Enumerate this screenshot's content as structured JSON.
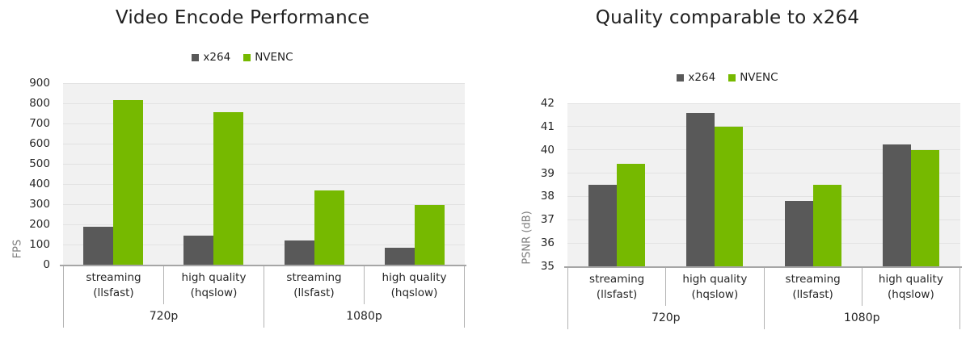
{
  "colors": {
    "x264": "#595959",
    "nvenc": "#76b900",
    "plot_bg": "#f1f1f1",
    "gridline": "#e2e2e2",
    "axis_line": "#a6a6a6",
    "box_border": "#b3b3b3",
    "title_text": "#1f1f1f",
    "tick_text": "#262626",
    "axis_title_text": "#7f7f7f",
    "background": "#ffffff"
  },
  "chart_data": [
    {
      "type": "bar",
      "title": "Video Encode Performance",
      "ylabel": "FPS",
      "xlabel": "",
      "ylim": [
        0,
        900
      ],
      "ytick_step": 100,
      "grid": true,
      "legend_position": "top",
      "groups": [
        "720p",
        "1080p"
      ],
      "categories": [
        "streaming\n(llsfast)",
        "high quality\n(hqslow)",
        "streaming\n(llsfast)",
        "high quality\n(hqslow)"
      ],
      "series": [
        {
          "name": "x264",
          "color": "#595959",
          "values": [
            190,
            145,
            120,
            85
          ]
        },
        {
          "name": "NVENC",
          "color": "#76b900",
          "values": [
            815,
            755,
            370,
            295
          ]
        }
      ]
    },
    {
      "type": "bar",
      "title": "Quality comparable to x264",
      "ylabel": "PSNR (dB)",
      "xlabel": "",
      "ylim": [
        35,
        42
      ],
      "ytick_step": 1,
      "grid": true,
      "legend_position": "top",
      "groups": [
        "720p",
        "1080p"
      ],
      "categories": [
        "streaming\n(llsfast)",
        "high quality\n(hqslow)",
        "streaming\n(llsfast)",
        "high quality\n(hqslow)"
      ],
      "series": [
        {
          "name": "x264",
          "color": "#595959",
          "values": [
            38.5,
            41.6,
            37.8,
            40.25
          ]
        },
        {
          "name": "NVENC",
          "color": "#76b900",
          "values": [
            39.4,
            41.0,
            38.5,
            40.0
          ]
        }
      ]
    }
  ]
}
